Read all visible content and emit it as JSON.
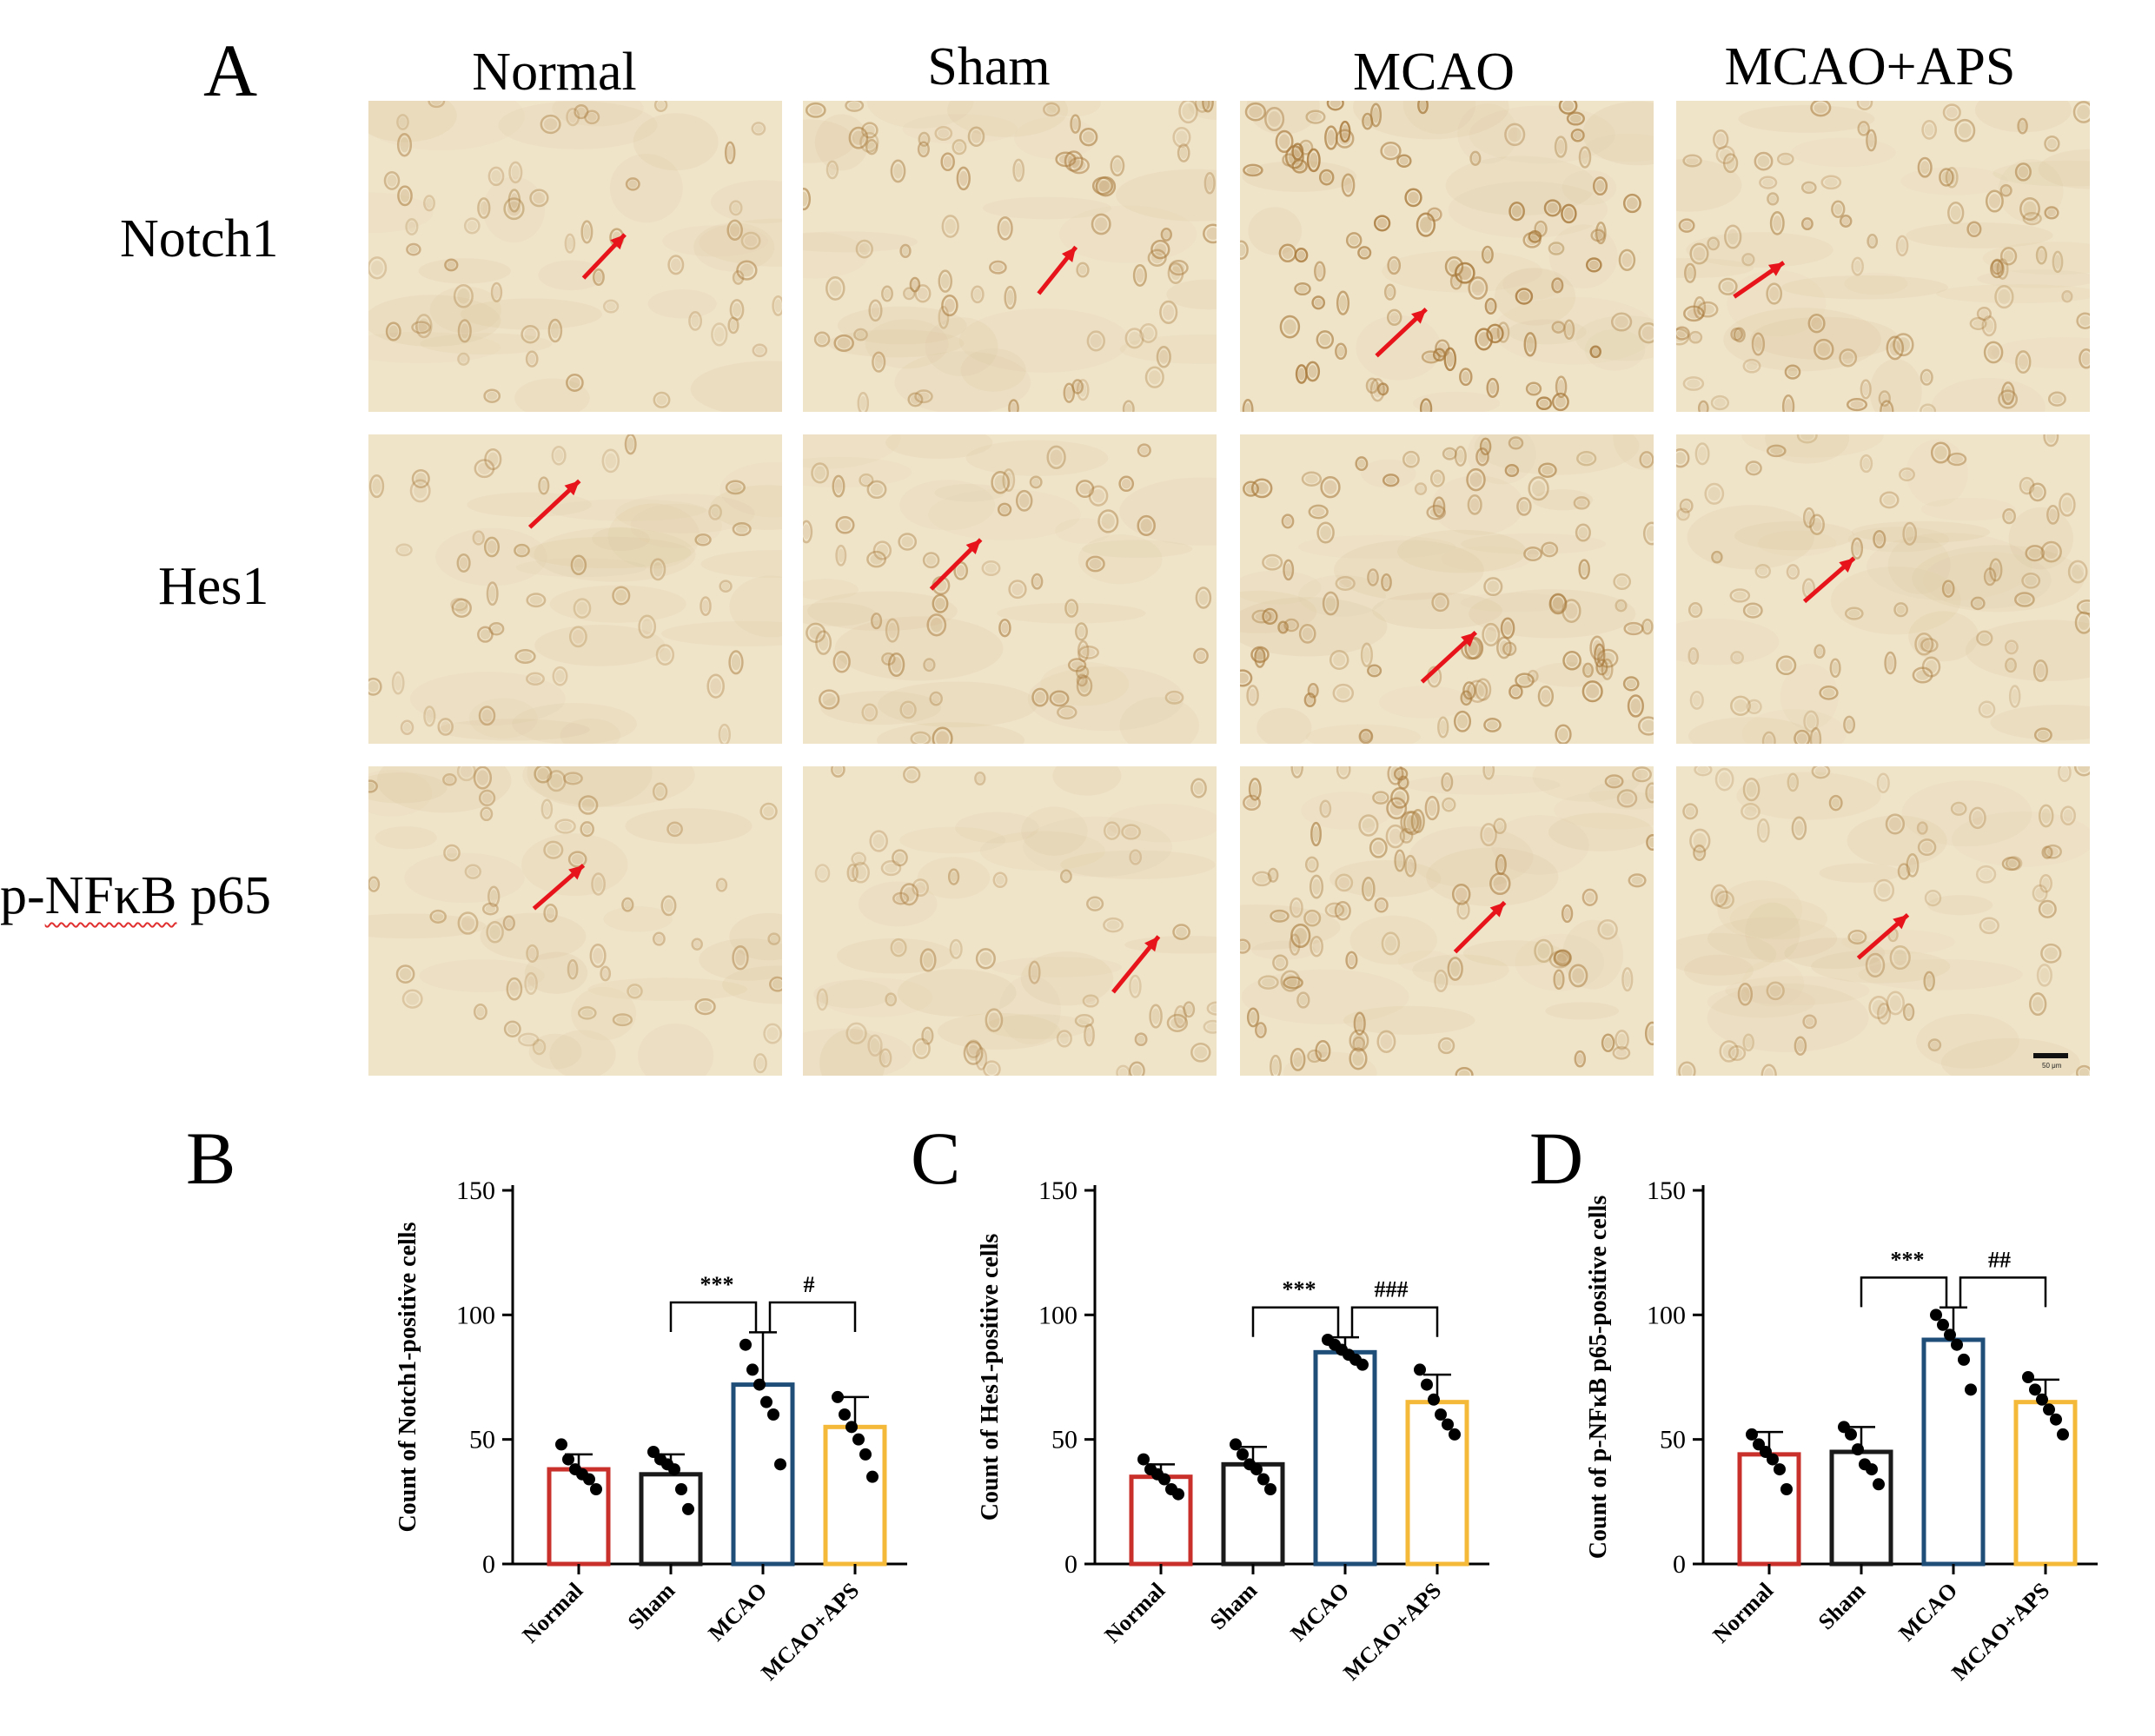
{
  "panels": {
    "A": "A",
    "B": "B",
    "C": "C",
    "D": "D"
  },
  "columns": [
    "Normal",
    "Sham",
    "MCAO",
    "MCAO+APS"
  ],
  "rows": [
    {
      "label_pre": "Notch1",
      "label_squiggle": "",
      "label_post": ""
    },
    {
      "label_pre": "Hes1",
      "label_squiggle": "",
      "label_post": ""
    },
    {
      "label_pre": "p-",
      "label_squiggle": "NFκB",
      "label_post": " p65"
    }
  ],
  "scale_bar_label": "50 μm",
  "colors": {
    "Normal": "#c9302c",
    "Sham": "#1a1a1a",
    "MCAO": "#1f4e79",
    "MCAO+APS": "#f5b93a",
    "arrow": "#e8141b",
    "tissue": "#efe3c8",
    "stain": "#a87a3c"
  },
  "chart_data": [
    {
      "type": "bar",
      "panel": "B",
      "categories": [
        "Normal",
        "Sham",
        "MCAO",
        "MCAO+APS"
      ],
      "values": [
        38,
        36,
        72,
        55
      ],
      "errors": [
        6,
        8,
        21,
        12
      ],
      "points": [
        [
          48,
          42,
          38,
          36,
          34,
          30
        ],
        [
          45,
          42,
          40,
          38,
          30,
          22
        ],
        [
          88,
          78,
          72,
          65,
          60,
          40
        ],
        [
          67,
          60,
          55,
          50,
          44,
          35
        ]
      ],
      "ylabel": "Count of Notch1-positive cells",
      "ylim": [
        0,
        150
      ],
      "yticks": [
        0,
        50,
        100,
        150
      ],
      "significance": [
        {
          "from": "Sham",
          "to": "MCAO",
          "label": "***"
        },
        {
          "from": "MCAO",
          "to": "MCAO+APS",
          "label": "#"
        }
      ]
    },
    {
      "type": "bar",
      "panel": "C",
      "categories": [
        "Normal",
        "Sham",
        "MCAO",
        "MCAO+APS"
      ],
      "values": [
        35,
        40,
        85,
        65
      ],
      "errors": [
        5,
        7,
        6,
        11
      ],
      "points": [
        [
          42,
          38,
          36,
          34,
          30,
          28
        ],
        [
          48,
          44,
          40,
          38,
          34,
          30
        ],
        [
          90,
          88,
          86,
          84,
          82,
          80
        ],
        [
          78,
          72,
          66,
          60,
          56,
          52
        ]
      ],
      "ylabel": "Count of Hes1-positive cells",
      "ylim": [
        0,
        150
      ],
      "yticks": [
        0,
        50,
        100,
        150
      ],
      "significance": [
        {
          "from": "Sham",
          "to": "MCAO",
          "label": "***"
        },
        {
          "from": "MCAO",
          "to": "MCAO+APS",
          "label": "###"
        }
      ]
    },
    {
      "type": "bar",
      "panel": "D",
      "categories": [
        "Normal",
        "Sham",
        "MCAO",
        "MCAO+APS"
      ],
      "values": [
        44,
        45,
        90,
        65
      ],
      "errors": [
        9,
        10,
        13,
        9
      ],
      "points": [
        [
          52,
          48,
          45,
          42,
          38,
          30
        ],
        [
          55,
          52,
          46,
          40,
          38,
          32
        ],
        [
          100,
          96,
          92,
          88,
          82,
          70
        ],
        [
          75,
          70,
          66,
          62,
          58,
          52
        ]
      ],
      "ylabel": "Count of p-NFκB p65-positive cells",
      "ylim": [
        0,
        150
      ],
      "yticks": [
        0,
        50,
        100,
        150
      ],
      "significance": [
        {
          "from": "Sham",
          "to": "MCAO",
          "label": "***"
        },
        {
          "from": "MCAO",
          "to": "MCAO+APS",
          "label": "##"
        }
      ]
    }
  ]
}
